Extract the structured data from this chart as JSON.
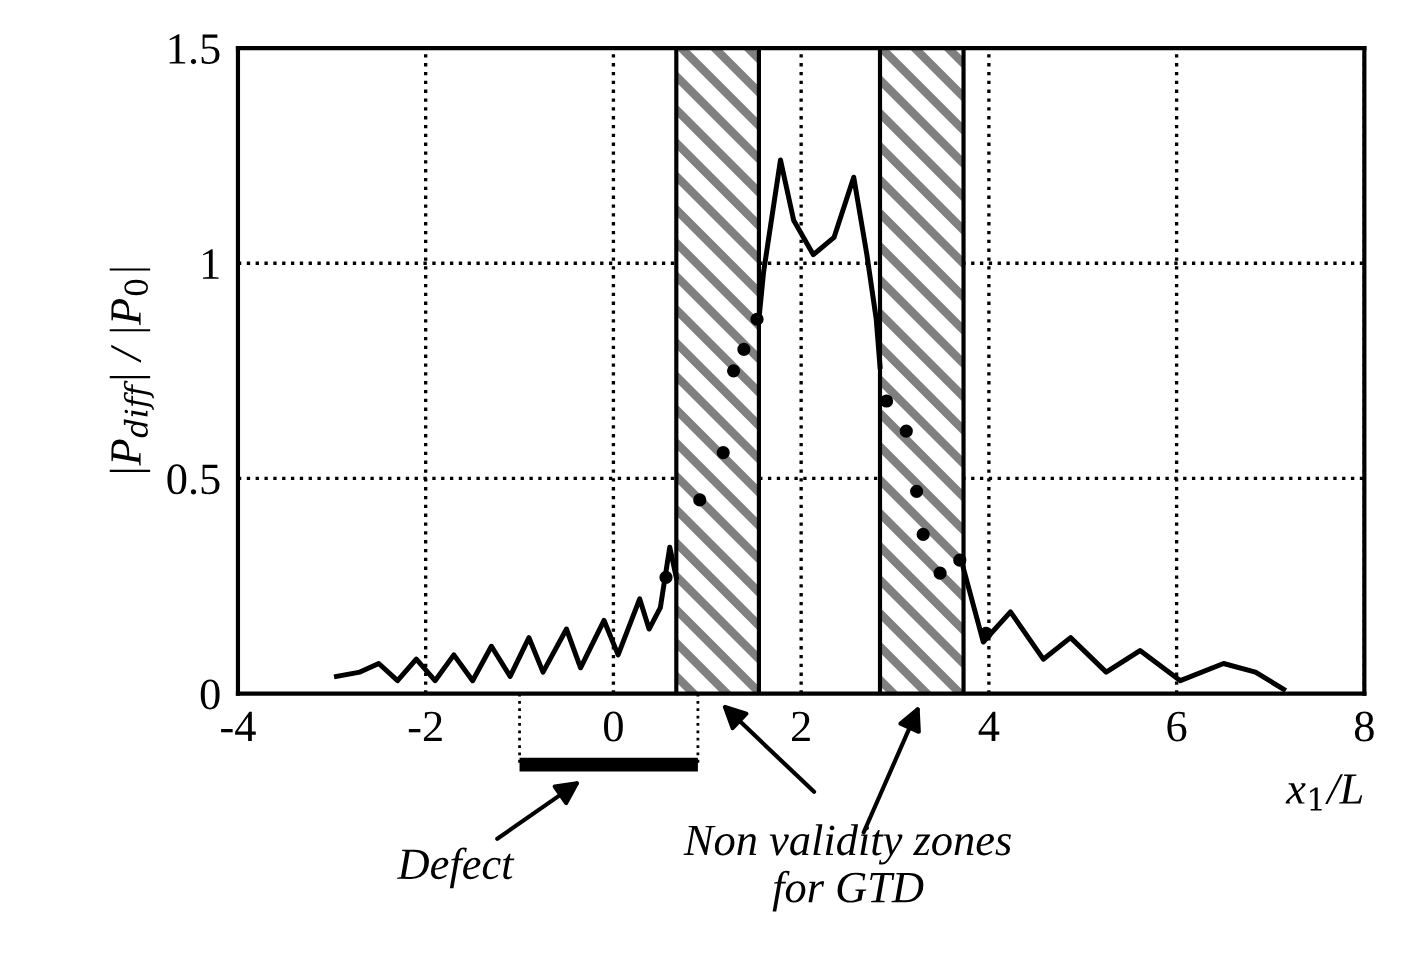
{
  "chart_data": {
    "type": "line",
    "xlabel": "x$_{1}$/L",
    "ylabel": "|P$_{diff}$| / |P$_{0}$|",
    "xlim": [
      -4,
      8
    ],
    "xticks": [
      -4,
      -2,
      0,
      2,
      4,
      6,
      8
    ],
    "ylim": [
      0,
      1.5
    ],
    "yticks": [
      0,
      0.5,
      1,
      1.5
    ],
    "grid": true,
    "line_style": "solid",
    "series": [
      {
        "color": "#000000",
        "x": [
          -2.95,
          -2.7,
          -2.5,
          -2.3,
          -2.1,
          -1.9,
          -1.7,
          -1.5,
          -1.3,
          -1.1,
          -0.9,
          -0.75,
          -0.5,
          -0.35,
          -0.1,
          0.05,
          0.28,
          0.38,
          0.5,
          0.6,
          0.67,
          null,
          1.55,
          1.6,
          1.78,
          1.92,
          2.13,
          2.35,
          2.56,
          2.7,
          2.8,
          2.84,
          null,
          3.73,
          3.94,
          4.23,
          4.58,
          4.87,
          5.25,
          5.61,
          6.04,
          6.5,
          6.84,
          7.14
        ],
        "values": [
          0.04,
          0.05,
          0.07,
          0.03,
          0.08,
          0.03,
          0.09,
          0.03,
          0.11,
          0.04,
          0.13,
          0.05,
          0.15,
          0.06,
          0.17,
          0.09,
          0.22,
          0.15,
          0.2,
          0.34,
          0.27,
          null,
          0.87,
          0.98,
          1.24,
          1.1,
          1.02,
          1.06,
          1.2,
          1.02,
          0.87,
          0.76,
          null,
          0.29,
          0.12,
          0.19,
          0.08,
          0.13,
          0.05,
          0.1,
          0.03,
          0.07,
          0.05,
          0.01
        ]
      },
      {
        "type": "scatter",
        "color": "#000000",
        "marker": "circle",
        "x": [
          0.56,
          0.92,
          1.17,
          1.28,
          1.39,
          1.53,
          2.91,
          3.12,
          3.23,
          3.3,
          3.48,
          3.69,
          3.97
        ],
        "values": [
          0.27,
          0.45,
          0.56,
          0.75,
          0.8,
          0.87,
          0.68,
          0.61,
          0.47,
          0.37,
          0.28,
          0.31,
          0.14
        ]
      }
    ],
    "bands": [
      {
        "axis": "x",
        "from": 0.67,
        "to": 1.55,
        "color": "#808080"
      },
      {
        "axis": "x",
        "from": 2.84,
        "to": 3.73,
        "color": "#808080"
      }
    ],
    "annotations": [
      "Defect",
      "Non validity zones\nfor GTD"
    ]
  }
}
